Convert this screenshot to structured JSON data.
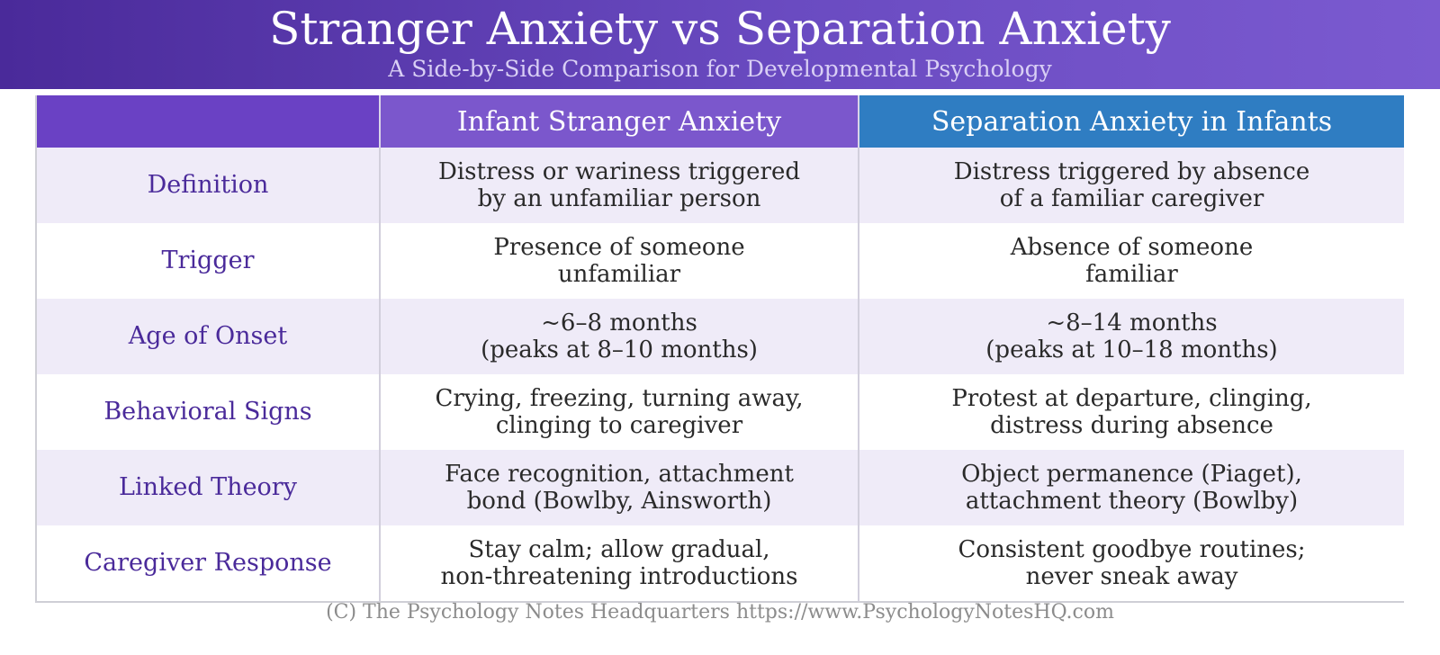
{
  "header": {
    "title": "Stranger Anxiety vs Separation Anxiety",
    "subtitle": "A Side-by-Side Comparison for Developmental Psychology"
  },
  "table": {
    "columns": [
      "",
      "Infant Stranger Anxiety",
      "Separation Anxiety in Infants"
    ],
    "rows": [
      {
        "label": "Definition",
        "stranger": [
          "Distress or wariness triggered",
          "by an unfamiliar person"
        ],
        "separation": [
          "Distress triggered by absence",
          "of a familiar caregiver"
        ]
      },
      {
        "label": "Trigger",
        "stranger": [
          "Presence of someone",
          "unfamiliar"
        ],
        "separation": [
          "Absence of someone",
          "familiar"
        ]
      },
      {
        "label": "Age of Onset",
        "stranger": [
          "~6–8 months",
          "(peaks at 8–10 months)"
        ],
        "separation": [
          "~8–14 months",
          "(peaks at 10–18 months)"
        ]
      },
      {
        "label": "Behavioral Signs",
        "stranger": [
          "Crying, freezing, turning away,",
          "clinging to caregiver"
        ],
        "separation": [
          "Protest at departure, clinging,",
          "distress during absence"
        ]
      },
      {
        "label": "Linked Theory",
        "stranger": [
          "Face recognition, attachment",
          "bond (Bowlby, Ainsworth)"
        ],
        "separation": [
          "Object permanence (Piaget),",
          "attachment theory (Bowlby)"
        ]
      },
      {
        "label": "Caregiver Response",
        "stranger": [
          "Stay calm; allow gradual,",
          "non-threatening introductions"
        ],
        "separation": [
          "Consistent goodbye routines;",
          "never sneak away"
        ]
      }
    ]
  },
  "footer": {
    "credit": "(C) The Psychology Notes Headquarters https://www.PsychologyNotesHQ.com"
  },
  "colors": {
    "header_gradient_start": "#4a2a9a",
    "header_gradient_end": "#7b5ad0",
    "stranger_header": "#7b57cc",
    "separation_header": "#2f7dc2",
    "row_label_text": "#4a2a9a",
    "row_alt_bg": "#efebf8"
  }
}
